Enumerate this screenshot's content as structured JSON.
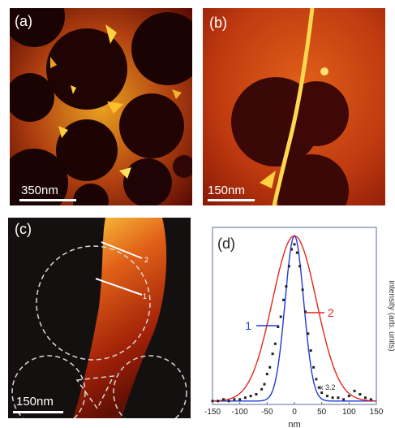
{
  "figure": {
    "panel_a": {
      "tag": "(a)",
      "scale_label": "350nm"
    },
    "panel_b": {
      "tag": "(b)",
      "scale_label": "150nm"
    },
    "panel_c": {
      "tag": "(c)",
      "scale_label": "150nm",
      "line_label_1": "1",
      "line_label_2": "2"
    },
    "panel_d": {
      "tag": "(d)",
      "multiplier_label": "x 3.2"
    }
  },
  "colors": {
    "colormap_dark": "#140202",
    "colormap_mid": "#b01e06",
    "colormap_bright": "#ffd040",
    "curve_1": "#1d3bd6",
    "curve_2": "#e0281e",
    "data_points": "#222222"
  },
  "chart_data": {
    "type": "line",
    "title": "",
    "xlabel": "nm",
    "ylabel": "intensity (arb. units)",
    "xlim": [
      -150,
      150
    ],
    "ylim": [
      0,
      1.05
    ],
    "xticks": [
      -150,
      -100,
      -50,
      0,
      50,
      100,
      150
    ],
    "grid": false,
    "series": [
      {
        "name": "1",
        "kind": "gaussian-fit",
        "color": "#1d3bd6",
        "center": 0,
        "fwhm": 40,
        "amplitude": 1.0
      },
      {
        "name": "2",
        "kind": "gaussian-fit",
        "color": "#e0281e",
        "center": 0,
        "fwhm": 95,
        "amplitude": 1.0
      },
      {
        "kind": "scatter",
        "color": "#222222",
        "x": [
          -150,
          -140,
          -130,
          -120,
          -110,
          -100,
          -90,
          -80,
          -70,
          -60,
          -55,
          -50,
          -45,
          -40,
          -35,
          -30,
          -25,
          -20,
          -15,
          -10,
          -5,
          0,
          5,
          10,
          15,
          20,
          25,
          30,
          35,
          40,
          45,
          50,
          60,
          70,
          80,
          90,
          100,
          110,
          120,
          130,
          140
        ],
        "y": [
          0.02,
          0.02,
          0.03,
          0.02,
          0.03,
          0.03,
          0.04,
          0.05,
          0.06,
          0.09,
          0.12,
          0.18,
          0.22,
          0.3,
          0.36,
          0.46,
          0.52,
          0.62,
          0.7,
          0.82,
          0.92,
          0.95,
          0.9,
          0.82,
          0.68,
          0.55,
          0.42,
          0.32,
          0.22,
          0.15,
          0.1,
          0.07,
          0.05,
          0.04,
          0.04,
          0.03,
          0.05,
          0.08,
          0.06,
          0.04,
          0.03
        ]
      }
    ]
  }
}
